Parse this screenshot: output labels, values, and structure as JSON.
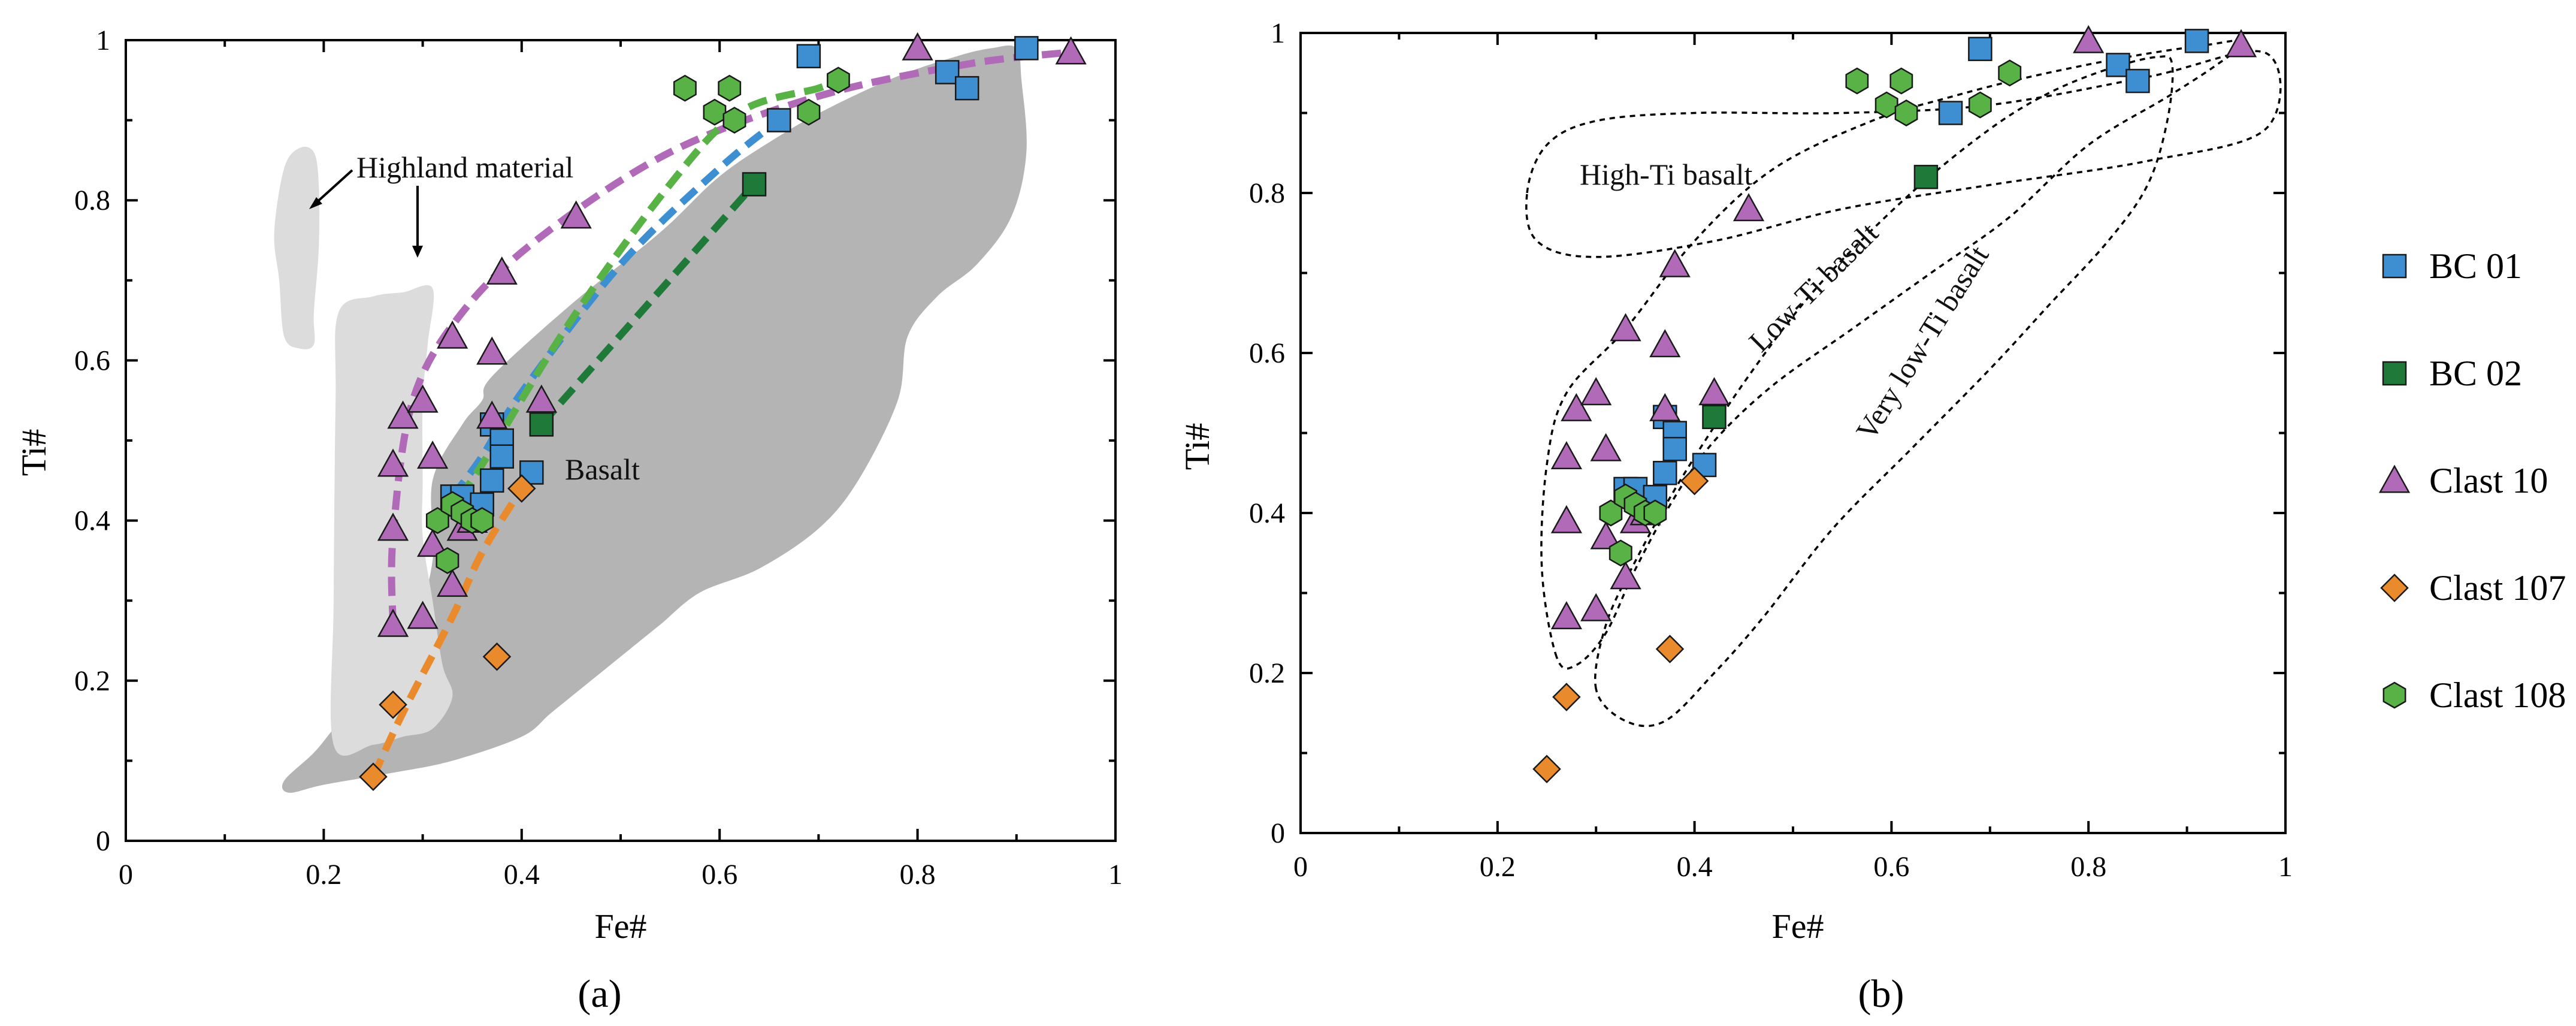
{
  "series_styles": {
    "BC 01": {
      "color": "#3d8fd1",
      "shape": "square"
    },
    "BC 02": {
      "color": "#1f7a3a",
      "shape": "square"
    },
    "Clast 10": {
      "color": "#b06ab8",
      "shape": "triangle"
    },
    "Clast 107": {
      "color": "#e98a2c",
      "shape": "diamond"
    },
    "Clast 108": {
      "color": "#58b245",
      "shape": "hexagon"
    }
  },
  "region_colors": {
    "highland": "#dcdcdc",
    "basalt": "#b4b4b4"
  },
  "legend": {
    "items": [
      "BC 01",
      "BC 02",
      "Clast 10",
      "Clast 107",
      "Clast 108"
    ]
  },
  "chart_data": [
    {
      "type": "scatter",
      "panel_label": "(a)",
      "xlabel": "Fe#",
      "ylabel": "Ti#",
      "xlim": [
        0,
        1
      ],
      "ylim": [
        0,
        1
      ],
      "xticks": [
        "0",
        "0.2",
        "0.4",
        "0.6",
        "0.8",
        "1"
      ],
      "yticks": [
        "0",
        "0.2",
        "0.4",
        "0.6",
        "0.8",
        "1"
      ],
      "region_labels": {
        "highland": "Highland material",
        "basalt": "Basalt"
      },
      "series": [
        {
          "name": "BC 01",
          "points": [
            [
              0.33,
              0.43
            ],
            [
              0.34,
              0.43
            ],
            [
              0.36,
              0.42
            ],
            [
              0.37,
              0.45
            ],
            [
              0.37,
              0.52
            ],
            [
              0.38,
              0.5
            ],
            [
              0.38,
              0.48
            ],
            [
              0.41,
              0.46
            ],
            [
              0.66,
              0.9
            ],
            [
              0.69,
              0.98
            ],
            [
              0.83,
              0.96
            ],
            [
              0.85,
              0.94
            ],
            [
              0.91,
              0.99
            ]
          ]
        },
        {
          "name": "BC 02",
          "points": [
            [
              0.42,
              0.52
            ],
            [
              0.635,
              0.82
            ]
          ]
        },
        {
          "name": "Clast 10",
          "points": [
            [
              0.27,
              0.27
            ],
            [
              0.27,
              0.39
            ],
            [
              0.27,
              0.47
            ],
            [
              0.28,
              0.53
            ],
            [
              0.3,
              0.55
            ],
            [
              0.3,
              0.28
            ],
            [
              0.31,
              0.37
            ],
            [
              0.31,
              0.48
            ],
            [
              0.33,
              0.32
            ],
            [
              0.33,
              0.63
            ],
            [
              0.34,
              0.39
            ],
            [
              0.35,
              0.4
            ],
            [
              0.37,
              0.53
            ],
            [
              0.37,
              0.61
            ],
            [
              0.38,
              0.71
            ],
            [
              0.42,
              0.55
            ],
            [
              0.455,
              0.78
            ],
            [
              0.8,
              0.99
            ],
            [
              0.955,
              0.985
            ]
          ]
        },
        {
          "name": "Clast 107",
          "points": [
            [
              0.25,
              0.08
            ],
            [
              0.27,
              0.17
            ],
            [
              0.375,
              0.23
            ],
            [
              0.4,
              0.44
            ]
          ]
        },
        {
          "name": "Clast 108",
          "points": [
            [
              0.315,
              0.4
            ],
            [
              0.325,
              0.35
            ],
            [
              0.33,
              0.42
            ],
            [
              0.34,
              0.41
            ],
            [
              0.35,
              0.4
            ],
            [
              0.36,
              0.4
            ],
            [
              0.565,
              0.94
            ],
            [
              0.595,
              0.91
            ],
            [
              0.61,
              0.94
            ],
            [
              0.615,
              0.9
            ],
            [
              0.69,
              0.91
            ],
            [
              0.72,
              0.95
            ]
          ]
        }
      ],
      "trend_lines": [
        {
          "series": "Clast 10",
          "points": [
            [
              0.27,
              0.27
            ],
            [
              0.27,
              0.38
            ],
            [
              0.29,
              0.55
            ],
            [
              0.34,
              0.66
            ],
            [
              0.42,
              0.755
            ],
            [
              0.55,
              0.86
            ],
            [
              0.7,
              0.93
            ],
            [
              0.85,
              0.97
            ],
            [
              0.955,
              0.985
            ]
          ]
        },
        {
          "series": "BC 01",
          "points": [
            [
              0.33,
              0.43
            ],
            [
              0.36,
              0.48
            ],
            [
              0.4,
              0.56
            ],
            [
              0.5,
              0.72
            ],
            [
              0.6,
              0.84
            ],
            [
              0.66,
              0.9
            ]
          ]
        },
        {
          "series": "Clast 108",
          "points": [
            [
              0.32,
              0.4
            ],
            [
              0.36,
              0.47
            ],
            [
              0.45,
              0.65
            ],
            [
              0.55,
              0.82
            ],
            [
              0.62,
              0.91
            ],
            [
              0.7,
              0.94
            ],
            [
              0.72,
              0.95
            ]
          ]
        },
        {
          "series": "BC 02",
          "points": [
            [
              0.42,
              0.52
            ],
            [
              0.635,
              0.82
            ]
          ]
        },
        {
          "series": "Clast 107",
          "points": [
            [
              0.25,
              0.08
            ],
            [
              0.28,
              0.16
            ],
            [
              0.33,
              0.28
            ],
            [
              0.36,
              0.36
            ],
            [
              0.4,
              0.44
            ]
          ]
        }
      ]
    },
    {
      "type": "scatter",
      "panel_label": "(b)",
      "xlabel": "Fe#",
      "ylabel": "Ti#",
      "xlim": [
        0,
        1
      ],
      "ylim": [
        0,
        1
      ],
      "xticks": [
        "0",
        "0.2",
        "0.4",
        "0.6",
        "0.8",
        "1"
      ],
      "yticks": [
        "0",
        "0.2",
        "0.4",
        "0.6",
        "0.8",
        "1"
      ],
      "field_labels": {
        "high_ti": "High-Ti basalt",
        "low_ti": "Low-Ti basalt",
        "very_low_ti": "Very low-Ti basalt"
      },
      "series": [
        {
          "name": "BC 01",
          "points": [
            [
              0.33,
              0.43
            ],
            [
              0.34,
              0.43
            ],
            [
              0.36,
              0.42
            ],
            [
              0.37,
              0.45
            ],
            [
              0.37,
              0.52
            ],
            [
              0.38,
              0.5
            ],
            [
              0.38,
              0.48
            ],
            [
              0.41,
              0.46
            ],
            [
              0.66,
              0.9
            ],
            [
              0.69,
              0.98
            ],
            [
              0.83,
              0.96
            ],
            [
              0.85,
              0.94
            ],
            [
              0.91,
              0.99
            ]
          ]
        },
        {
          "name": "BC 02",
          "points": [
            [
              0.42,
              0.52
            ],
            [
              0.635,
              0.82
            ]
          ]
        },
        {
          "name": "Clast 10",
          "points": [
            [
              0.27,
              0.27
            ],
            [
              0.27,
              0.39
            ],
            [
              0.27,
              0.47
            ],
            [
              0.28,
              0.53
            ],
            [
              0.3,
              0.55
            ],
            [
              0.3,
              0.28
            ],
            [
              0.31,
              0.37
            ],
            [
              0.31,
              0.48
            ],
            [
              0.33,
              0.32
            ],
            [
              0.33,
              0.63
            ],
            [
              0.34,
              0.39
            ],
            [
              0.35,
              0.4
            ],
            [
              0.37,
              0.53
            ],
            [
              0.37,
              0.61
            ],
            [
              0.38,
              0.71
            ],
            [
              0.42,
              0.55
            ],
            [
              0.455,
              0.78
            ],
            [
              0.8,
              0.99
            ],
            [
              0.955,
              0.985
            ]
          ]
        },
        {
          "name": "Clast 107",
          "points": [
            [
              0.25,
              0.08
            ],
            [
              0.27,
              0.17
            ],
            [
              0.375,
              0.23
            ],
            [
              0.4,
              0.44
            ]
          ]
        },
        {
          "name": "Clast 108",
          "points": [
            [
              0.315,
              0.4
            ],
            [
              0.325,
              0.35
            ],
            [
              0.33,
              0.42
            ],
            [
              0.34,
              0.41
            ],
            [
              0.35,
              0.4
            ],
            [
              0.36,
              0.4
            ],
            [
              0.565,
              0.94
            ],
            [
              0.595,
              0.91
            ],
            [
              0.61,
              0.94
            ],
            [
              0.615,
              0.9
            ],
            [
              0.69,
              0.91
            ],
            [
              0.72,
              0.95
            ]
          ]
        }
      ]
    }
  ]
}
